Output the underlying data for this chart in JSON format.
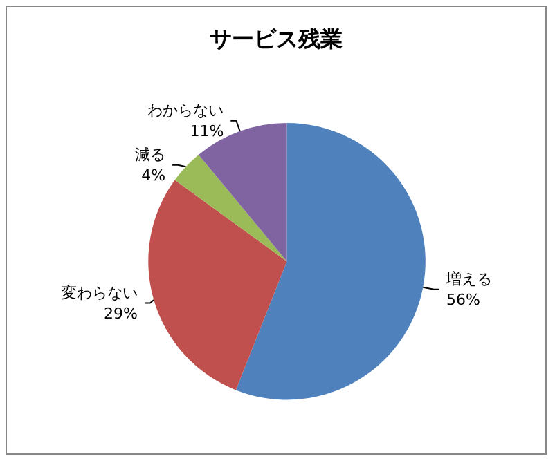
{
  "chart_data": {
    "type": "pie",
    "title": "サービス残業",
    "categories": [
      "増える",
      "変わらない",
      "減る",
      "わからない"
    ],
    "values": [
      56,
      29,
      4,
      11
    ],
    "colors": [
      "#4f81bd",
      "#c0504d",
      "#9bbb59",
      "#8064a2"
    ],
    "value_labels": [
      "56%",
      "29%",
      "4%",
      "11%"
    ],
    "legend": false
  }
}
